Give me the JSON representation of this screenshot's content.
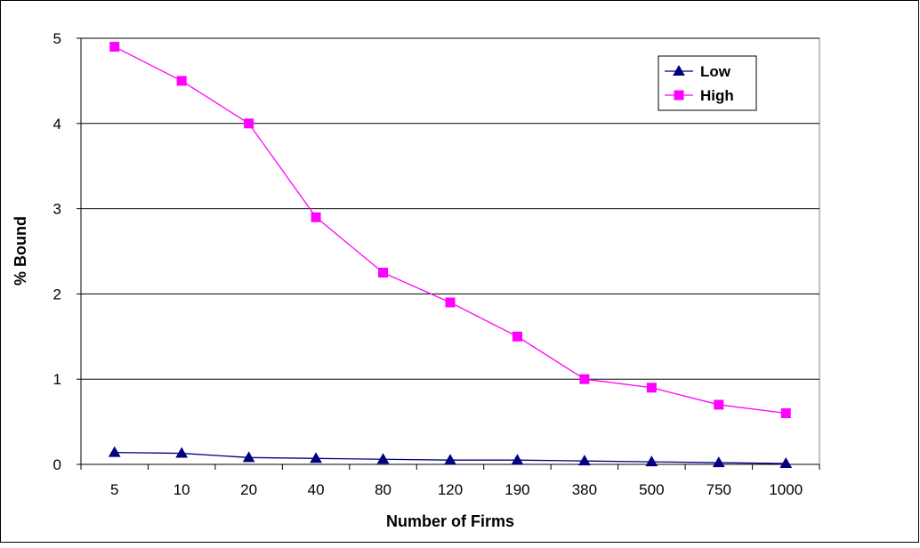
{
  "chart_data": {
    "type": "line",
    "title": "",
    "xlabel": "Number of Firms",
    "ylabel": "% Bound",
    "categories": [
      "5",
      "10",
      "20",
      "40",
      "80",
      "120",
      "190",
      "380",
      "500",
      "750",
      "1000"
    ],
    "ylim": [
      0,
      5
    ],
    "yticks": [
      "0",
      "1",
      "2",
      "3",
      "4",
      "5"
    ],
    "grid": "horizontal",
    "legend_position": "top-right",
    "series": [
      {
        "name": "Low",
        "color": "#000080",
        "marker": "triangle",
        "values": [
          0.14,
          0.13,
          0.08,
          0.07,
          0.06,
          0.05,
          0.05,
          0.04,
          0.03,
          0.02,
          0.01
        ]
      },
      {
        "name": "High",
        "color": "#FF00FF",
        "marker": "square",
        "values": [
          4.9,
          4.5,
          4.0,
          2.9,
          2.25,
          1.9,
          1.5,
          1.0,
          0.9,
          0.7,
          0.6
        ]
      }
    ]
  }
}
